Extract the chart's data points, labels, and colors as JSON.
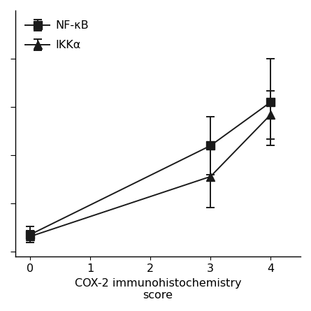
{
  "series": [
    {
      "label": "NF-κB",
      "x": [
        0,
        3,
        4
      ],
      "y": [
        0.18,
        1.1,
        1.55
      ],
      "yerr": [
        0.08,
        0.3,
        0.45
      ],
      "marker": "s",
      "markersize": 8,
      "color": "#1a1a1a",
      "linewidth": 1.4
    },
    {
      "label": "IKKα",
      "x": [
        0,
        3,
        4
      ],
      "y": [
        0.16,
        0.78,
        1.42
      ],
      "yerr": [
        0.06,
        0.32,
        0.25
      ],
      "marker": "^",
      "markersize": 9,
      "color": "#1a1a1a",
      "linewidth": 1.4
    }
  ],
  "xlabel": "COX-2 immunohistochemistry\nscore",
  "ylabel": "",
  "xlim": [
    -0.25,
    4.5
  ],
  "ylim": [
    -0.05,
    2.5
  ],
  "xticks": [
    0,
    1,
    2,
    3,
    4
  ],
  "ytick_positions": [
    0.0,
    0.5,
    1.0,
    1.5,
    2.0
  ],
  "xlabel_fontsize": 11.5,
  "legend_fontsize": 11.5,
  "tick_fontsize": 11.5,
  "background_color": "#ffffff",
  "capsize": 4,
  "elinewidth": 1.4
}
